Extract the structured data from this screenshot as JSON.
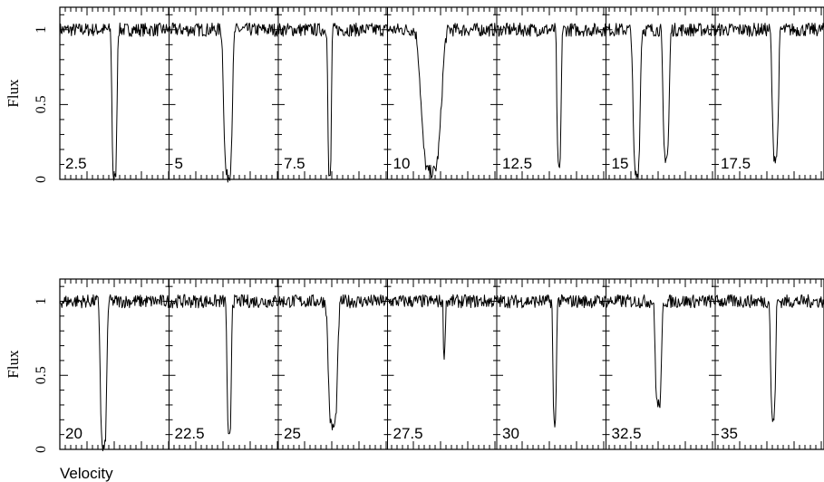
{
  "chart_data": [
    {
      "type": "line",
      "title": "",
      "ylabel": "Flux",
      "xlabel": "",
      "ylim": [
        0,
        1.15
      ],
      "yticks": [
        "0",
        "0.5",
        "1"
      ],
      "panels": [
        {
          "label": "2.5",
          "absorptions": [
            {
              "center": 0.5,
              "width": 0.07,
              "depth": 1.0
            }
          ]
        },
        {
          "label": "5",
          "absorptions": [
            {
              "center": 0.54,
              "width": 0.12,
              "depth": 0.98
            }
          ]
        },
        {
          "label": "7.5",
          "absorptions": [
            {
              "center": 0.47,
              "width": 0.05,
              "depth": 1.0
            }
          ]
        },
        {
          "label": "10",
          "absorptions": [
            {
              "center": 0.4,
              "width": 0.28,
              "depth": 0.95
            }
          ]
        },
        {
          "label": "12.5",
          "absorptions": [
            {
              "center": 0.57,
              "width": 0.06,
              "depth": 0.93
            }
          ]
        },
        {
          "label": "15",
          "absorptions": [
            {
              "center": 0.28,
              "width": 0.1,
              "depth": 0.97
            },
            {
              "center": 0.55,
              "width": 0.09,
              "depth": 0.85
            }
          ]
        },
        {
          "label": "17.5",
          "absorptions": [
            {
              "center": 0.55,
              "width": 0.09,
              "depth": 0.85
            }
          ]
        }
      ]
    },
    {
      "type": "line",
      "title": "",
      "ylabel": "Flux",
      "xlabel": "Velocity",
      "ylim": [
        0,
        1.15
      ],
      "yticks": [
        "0",
        "0.5",
        "1"
      ],
      "panels": [
        {
          "label": "20",
          "absorptions": [
            {
              "center": 0.4,
              "width": 0.09,
              "depth": 1.0
            }
          ]
        },
        {
          "label": "22.5",
          "absorptions": [
            {
              "center": 0.55,
              "width": 0.06,
              "depth": 0.93
            }
          ]
        },
        {
          "label": "25",
          "absorptions": [
            {
              "center": 0.5,
              "width": 0.13,
              "depth": 0.85
            }
          ]
        },
        {
          "label": "27.5",
          "absorptions": [
            {
              "center": 0.52,
              "width": 0.03,
              "depth": 0.35
            }
          ]
        },
        {
          "label": "30",
          "absorptions": [
            {
              "center": 0.53,
              "width": 0.05,
              "depth": 0.83
            }
          ]
        },
        {
          "label": "32.5",
          "absorptions": [
            {
              "center": 0.48,
              "width": 0.09,
              "depth": 0.7
            }
          ]
        },
        {
          "label": "35",
          "absorptions": [
            {
              "center": 0.53,
              "width": 0.07,
              "depth": 0.8
            }
          ]
        }
      ]
    }
  ]
}
